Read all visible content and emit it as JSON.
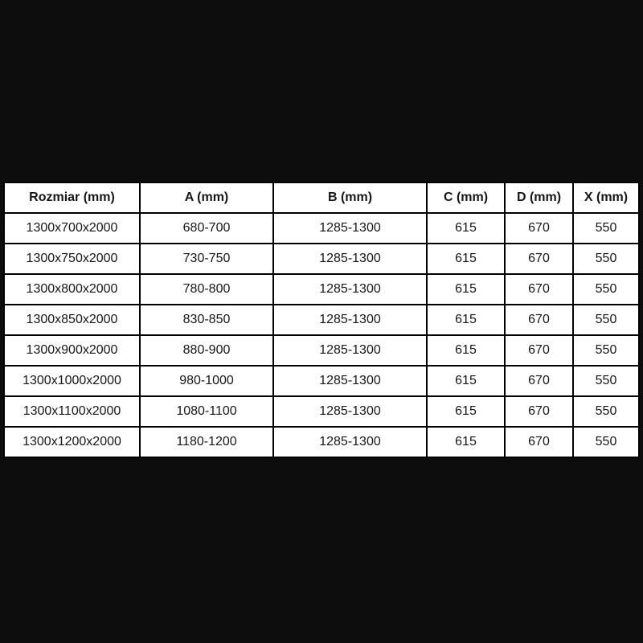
{
  "table": {
    "headers": [
      "Rozmiar (mm)",
      "A (mm)",
      "B (mm)",
      "C (mm)",
      "D (mm)",
      "X (mm)"
    ],
    "rows": [
      [
        "1300x700x2000",
        "680-700",
        "1285-1300",
        "615",
        "670",
        "550"
      ],
      [
        "1300x750x2000",
        "730-750",
        "1285-1300",
        "615",
        "670",
        "550"
      ],
      [
        "1300x800x2000",
        "780-800",
        "1285-1300",
        "615",
        "670",
        "550"
      ],
      [
        "1300x850x2000",
        "830-850",
        "1285-1300",
        "615",
        "670",
        "550"
      ],
      [
        "1300x900x2000",
        "880-900",
        "1285-1300",
        "615",
        "670",
        "550"
      ],
      [
        "1300x1000x2000",
        "980-1000",
        "1285-1300",
        "615",
        "670",
        "550"
      ],
      [
        "1300x1100x2000",
        "1080-1100",
        "1285-1300",
        "615",
        "670",
        "550"
      ],
      [
        "1300x1200x2000",
        "1180-1200",
        "1285-1300",
        "615",
        "670",
        "550"
      ]
    ]
  },
  "colors": {
    "background": "#0d0d0d",
    "table_background": "#ffffff",
    "border": "#000000",
    "text": "#161616"
  }
}
